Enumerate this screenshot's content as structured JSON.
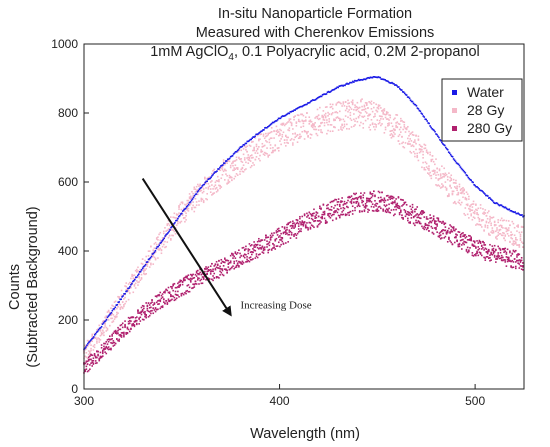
{
  "chart_data": {
    "type": "scatter",
    "title_lines": [
      "In-situ Nanoparticle Formation",
      "Measured with Cherenkov Emissions"
    ],
    "title_formula": {
      "prefix": "1mM AgClO",
      "subscript": "4",
      "suffix": ", 0.1 Polyacrylic acid, 0.2M 2-propanol"
    },
    "xlabel": "Wavelength (nm)",
    "ylabel_lines": [
      "Counts",
      "(Subtracted Background)"
    ],
    "xlim": [
      300,
      525
    ],
    "ylim": [
      0,
      1000
    ],
    "x_ticks": [
      300,
      400,
      500
    ],
    "y_ticks": [
      0,
      200,
      400,
      600,
      800,
      1000
    ],
    "legend_position": "top-right",
    "series": [
      {
        "name": "Water",
        "color": "#1a1ae6",
        "x": [
          300,
          310,
          320,
          330,
          340,
          350,
          360,
          370,
          380,
          390,
          400,
          410,
          420,
          430,
          440,
          450,
          460,
          470,
          480,
          490,
          500,
          510,
          525
        ],
        "y": [
          115,
          190,
          270,
          350,
          430,
          510,
          585,
          645,
          700,
          745,
          785,
          815,
          845,
          875,
          895,
          905,
          880,
          820,
          740,
          660,
          590,
          540,
          500
        ]
      },
      {
        "name": "28 Gy",
        "color": "#f4b8c8",
        "x": [
          300,
          310,
          320,
          330,
          340,
          350,
          360,
          370,
          380,
          390,
          400,
          410,
          420,
          430,
          440,
          450,
          460,
          470,
          480,
          490,
          500,
          510,
          525
        ],
        "y": [
          100,
          180,
          265,
          350,
          430,
          510,
          570,
          620,
          660,
          700,
          730,
          755,
          775,
          790,
          800,
          790,
          760,
          700,
          630,
          570,
          510,
          470,
          440
        ]
      },
      {
        "name": "280 Gy",
        "color": "#b0206e",
        "x": [
          300,
          310,
          320,
          330,
          340,
          350,
          360,
          370,
          380,
          390,
          400,
          410,
          420,
          430,
          440,
          450,
          460,
          470,
          480,
          490,
          500,
          510,
          525
        ],
        "y": [
          60,
          115,
          170,
          220,
          260,
          295,
          325,
          350,
          380,
          410,
          440,
          470,
          500,
          525,
          540,
          545,
          530,
          500,
          470,
          440,
          410,
          390,
          370
        ]
      }
    ],
    "annotation": {
      "text": "Increasing Dose",
      "arrow_from": [
        330,
        610
      ],
      "arrow_to": [
        375,
        215
      ],
      "label_at": [
        380,
        245
      ]
    }
  }
}
